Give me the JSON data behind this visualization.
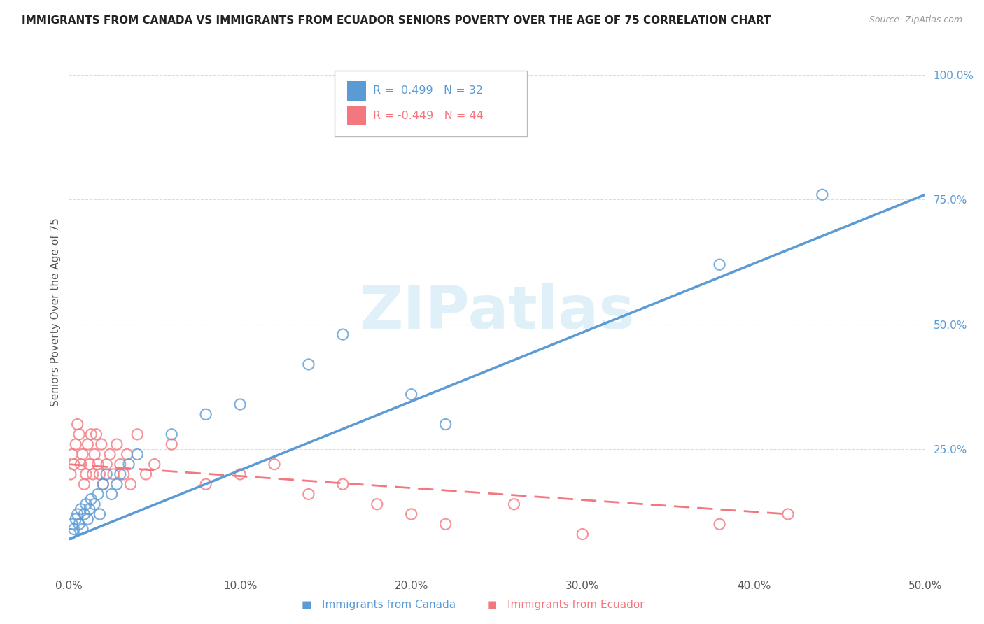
{
  "title": "IMMIGRANTS FROM CANADA VS IMMIGRANTS FROM ECUADOR SENIORS POVERTY OVER THE AGE OF 75 CORRELATION CHART",
  "source": "Source: ZipAtlas.com",
  "ylabel": "Seniors Poverty Over the Age of 75",
  "xlim": [
    0.0,
    0.5
  ],
  "ylim": [
    0.0,
    1.05
  ],
  "xtick_labels": [
    "0.0%",
    "10.0%",
    "20.0%",
    "30.0%",
    "40.0%",
    "50.0%"
  ],
  "xtick_vals": [
    0.0,
    0.1,
    0.2,
    0.3,
    0.4,
    0.5
  ],
  "ytick_labels": [
    "25.0%",
    "50.0%",
    "75.0%",
    "100.0%"
  ],
  "ytick_vals": [
    0.25,
    0.5,
    0.75,
    1.0
  ],
  "canada_color": "#5B9BD5",
  "ecuador_color": "#F4777F",
  "canada_R": 0.499,
  "canada_N": 32,
  "ecuador_R": -0.449,
  "ecuador_N": 44,
  "canada_scatter_x": [
    0.001,
    0.002,
    0.003,
    0.004,
    0.005,
    0.006,
    0.007,
    0.008,
    0.009,
    0.01,
    0.011,
    0.012,
    0.013,
    0.015,
    0.017,
    0.018,
    0.02,
    0.022,
    0.025,
    0.028,
    0.03,
    0.035,
    0.04,
    0.06,
    0.08,
    0.1,
    0.14,
    0.16,
    0.2,
    0.22,
    0.38,
    0.44
  ],
  "canada_scatter_y": [
    0.08,
    0.1,
    0.09,
    0.11,
    0.12,
    0.1,
    0.13,
    0.09,
    0.12,
    0.14,
    0.11,
    0.13,
    0.15,
    0.14,
    0.16,
    0.12,
    0.18,
    0.2,
    0.16,
    0.18,
    0.2,
    0.22,
    0.24,
    0.28,
    0.32,
    0.34,
    0.42,
    0.48,
    0.36,
    0.3,
    0.62,
    0.76
  ],
  "ecuador_scatter_x": [
    0.001,
    0.002,
    0.003,
    0.004,
    0.005,
    0.006,
    0.007,
    0.008,
    0.009,
    0.01,
    0.011,
    0.012,
    0.013,
    0.014,
    0.015,
    0.016,
    0.017,
    0.018,
    0.019,
    0.02,
    0.022,
    0.024,
    0.026,
    0.028,
    0.03,
    0.032,
    0.034,
    0.036,
    0.04,
    0.045,
    0.05,
    0.06,
    0.08,
    0.1,
    0.12,
    0.14,
    0.16,
    0.18,
    0.2,
    0.22,
    0.26,
    0.3,
    0.38,
    0.42
  ],
  "ecuador_scatter_y": [
    0.2,
    0.24,
    0.22,
    0.26,
    0.3,
    0.28,
    0.22,
    0.24,
    0.18,
    0.2,
    0.26,
    0.22,
    0.28,
    0.2,
    0.24,
    0.28,
    0.22,
    0.2,
    0.26,
    0.18,
    0.22,
    0.24,
    0.2,
    0.26,
    0.22,
    0.2,
    0.24,
    0.18,
    0.28,
    0.2,
    0.22,
    0.26,
    0.18,
    0.2,
    0.22,
    0.16,
    0.18,
    0.14,
    0.12,
    0.1,
    0.14,
    0.08,
    0.1,
    0.12
  ],
  "canada_line_x": [
    0.0,
    0.5
  ],
  "canada_line_y": [
    0.07,
    0.76
  ],
  "ecuador_line_x": [
    0.0,
    0.42
  ],
  "ecuador_line_y": [
    0.22,
    0.12
  ],
  "watermark_text": "ZIPatlas",
  "legend_label1": "Immigrants from Canada",
  "legend_label2": "Immigrants from Ecuador",
  "background_color": "#FFFFFF",
  "grid_color": "#CCCCCC"
}
